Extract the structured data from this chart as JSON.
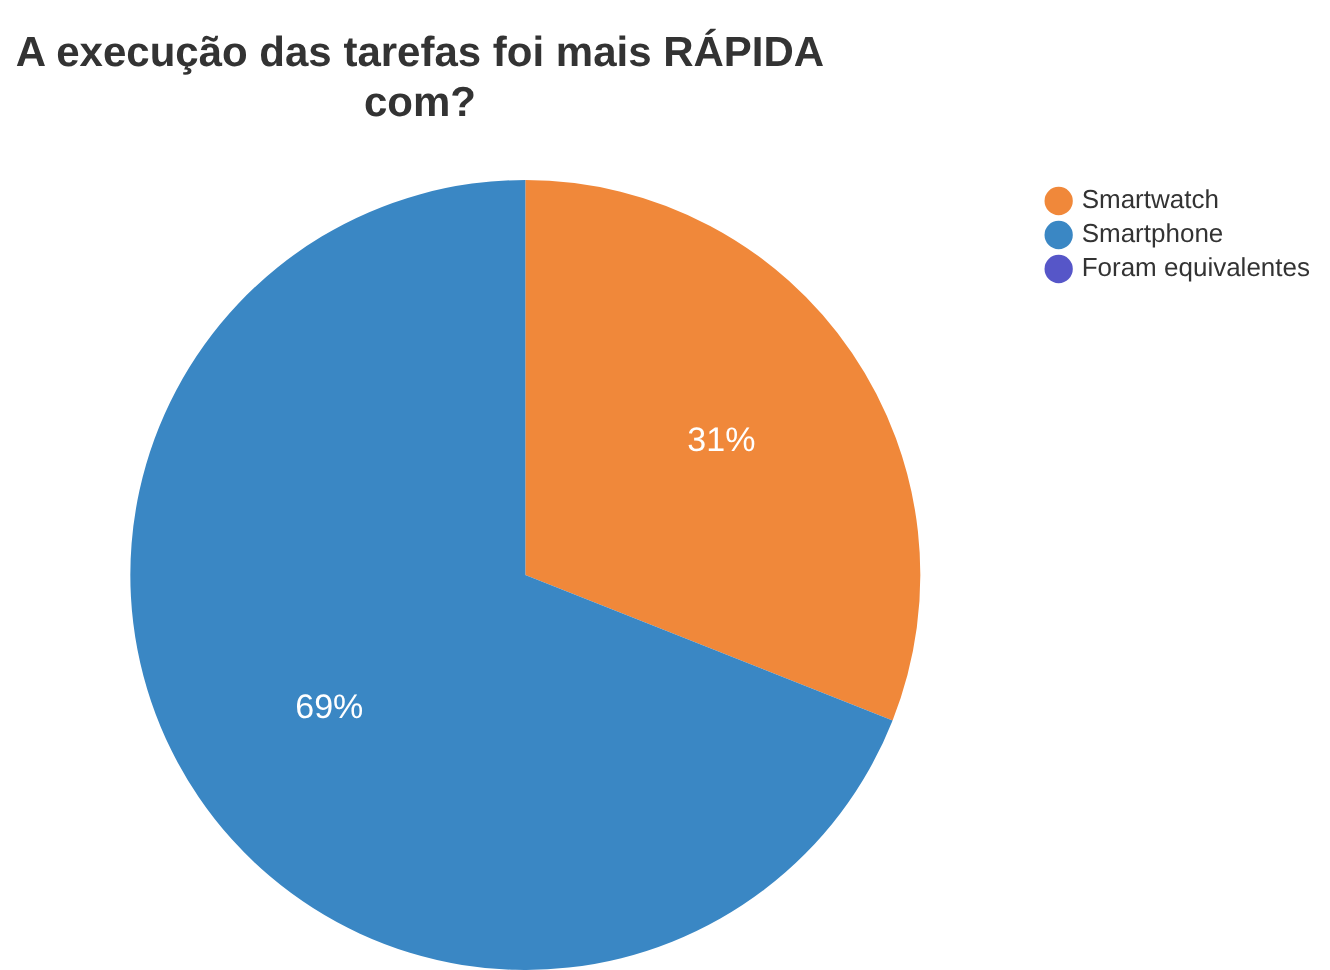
{
  "chart_data": {
    "type": "pie",
    "title": "A execução das tarefas foi mais RÁPIDA com?",
    "categories": [
      "Smartwatch",
      "Smartphone",
      "Foram equivalentes"
    ],
    "values": [
      31,
      69,
      0
    ],
    "colors": [
      "#f0883a",
      "#3a87c4",
      "#5656c8"
    ],
    "value_labels": [
      "31%",
      "69%",
      null
    ],
    "legend": "top right"
  }
}
